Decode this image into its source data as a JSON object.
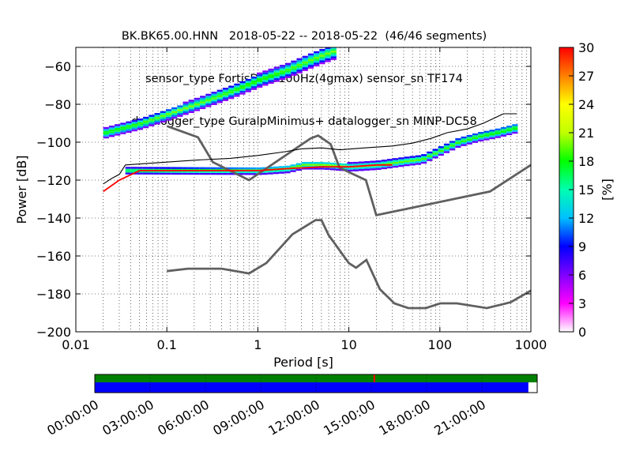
{
  "title_lines": [
    "BK.BK65.00.HNN   2018-05-22 -- 2018-05-22  (46/46 segments)",
    "sensor_type FortisDCto100Hz(4gmax) sensor_sn TF174",
    "datalogger_type GuralpMinimus+ datalogger_sn MINP-DC58"
  ],
  "chart_data": {
    "type": "heatmap",
    "xlabel": "Period [s]",
    "ylabel": "Power [dB]",
    "x_scale": "log",
    "xlim": [
      0.01,
      1000
    ],
    "ylim": [
      -200,
      -50
    ],
    "x_ticks": [
      0.01,
      0.1,
      1,
      10,
      100,
      1000
    ],
    "x_tick_labels": [
      "0.01",
      "0.1",
      "1",
      "10",
      "100",
      "1000"
    ],
    "y_ticks": [
      -200,
      -180,
      -160,
      -140,
      -120,
      -100,
      -80,
      -60
    ],
    "y_tick_labels": [
      "−200",
      "−180",
      "−160",
      "−140",
      "−120",
      "−100",
      "−80",
      "−60"
    ],
    "grid": "dotted",
    "colorbar": {
      "label": "[%]",
      "range": [
        0,
        30
      ],
      "ticks": [
        0,
        3,
        6,
        9,
        12,
        15,
        18,
        21,
        24,
        27,
        30
      ],
      "tick_labels": [
        "0",
        "3",
        "6",
        "9",
        "12",
        "15",
        "18",
        "21",
        "24",
        "27",
        "30"
      ],
      "colormap": [
        "#ffffff",
        "#ff00ff",
        "#8000ff",
        "#0000ff",
        "#00c0ff",
        "#00ffb0",
        "#00ff00",
        "#c0ff00",
        "#ffff00",
        "#ff8000",
        "#ff0000"
      ]
    },
    "curves": [
      {
        "name": "noise-model-high",
        "color": "#606060",
        "x": [
          0.1,
          0.22,
          0.32,
          0.8,
          3.8,
          4.6,
          6.3,
          7.9,
          15.4,
          20,
          354.8,
          1000
        ],
        "y": [
          -91.5,
          -97.4,
          -110.5,
          -120,
          -98,
          -96.5,
          -101,
          -113.5,
          -120,
          -138.5,
          -126,
          -112
        ]
      },
      {
        "name": "noise-model-low",
        "color": "#606060",
        "x": [
          0.1,
          0.17,
          0.4,
          0.8,
          1.24,
          2.4,
          4.3,
          5.0,
          6.0,
          10,
          12,
          15.6,
          21.9,
          31.6,
          45,
          70,
          101,
          154,
          328,
          600,
          1000
        ],
        "y": [
          -168,
          -166.7,
          -166.7,
          -169.2,
          -163.7,
          -148.6,
          -141.1,
          -141.1,
          -149,
          -163.8,
          -166.2,
          -162.1,
          -177.5,
          -185,
          -187.5,
          -187.5,
          -185,
          -185,
          -187.5,
          -184.4,
          -178.3
        ]
      },
      {
        "name": "percentile-top",
        "color": "#000000",
        "x": [
          0.02,
          0.025,
          0.03,
          0.035,
          0.05,
          0.1,
          0.2,
          0.5,
          1,
          2,
          3,
          5,
          8,
          15,
          30,
          50,
          80,
          120,
          200,
          300,
          500,
          700
        ],
        "y": [
          -122,
          -119,
          -117,
          -112,
          -111.5,
          -110.5,
          -109.5,
          -108.5,
          -107,
          -105,
          -103.5,
          -103,
          -104,
          -103,
          -102,
          -100.5,
          -98,
          -95,
          -93,
          -90,
          -85,
          -85
        ]
      },
      {
        "name": "mode-line",
        "color": "#ff0000",
        "x": [
          0.02,
          0.03,
          0.05,
          0.1,
          0.5,
          1,
          2,
          5,
          10,
          20,
          30
        ],
        "y": [
          -126,
          -120,
          -115,
          -115,
          -115,
          -115,
          -114,
          -113,
          -113,
          -112,
          -112
        ]
      }
    ],
    "density_bands": [
      {
        "name": "diagonal-band",
        "x": [
          0.02,
          0.05,
          0.1,
          0.2,
          0.5,
          1,
          2,
          3.5,
          5,
          6.5
        ],
        "y": [
          -95,
          -90,
          -85,
          -80,
          -73,
          -67,
          -62,
          -57,
          -54,
          -52
        ],
        "halfwidth": 2.5
      },
      {
        "name": "main-band",
        "x": [
          0.035,
          0.06,
          0.1,
          0.2,
          0.5,
          1,
          2,
          3,
          5,
          10,
          20,
          40,
          60,
          100,
          150,
          250,
          400,
          700
        ],
        "y": [
          -115,
          -115,
          -115,
          -115,
          -115,
          -115,
          -114,
          -112,
          -112,
          -113,
          -112,
          -110,
          -109,
          -104,
          -100,
          -97,
          -95,
          -92
        ],
        "halfwidth": 1.5
      }
    ],
    "timeline": {
      "tick_labels": [
        "00:00:00",
        "03:00:00",
        "06:00:00",
        "09:00:00",
        "12:00:00",
        "15:00:00",
        "18:00:00",
        "21:00:00"
      ],
      "top_bar_color": "#008000",
      "bottom_bar_color": "#0000ff",
      "data_coverage_fraction": 0.98,
      "gap_marker_fraction": 0.63
    }
  }
}
